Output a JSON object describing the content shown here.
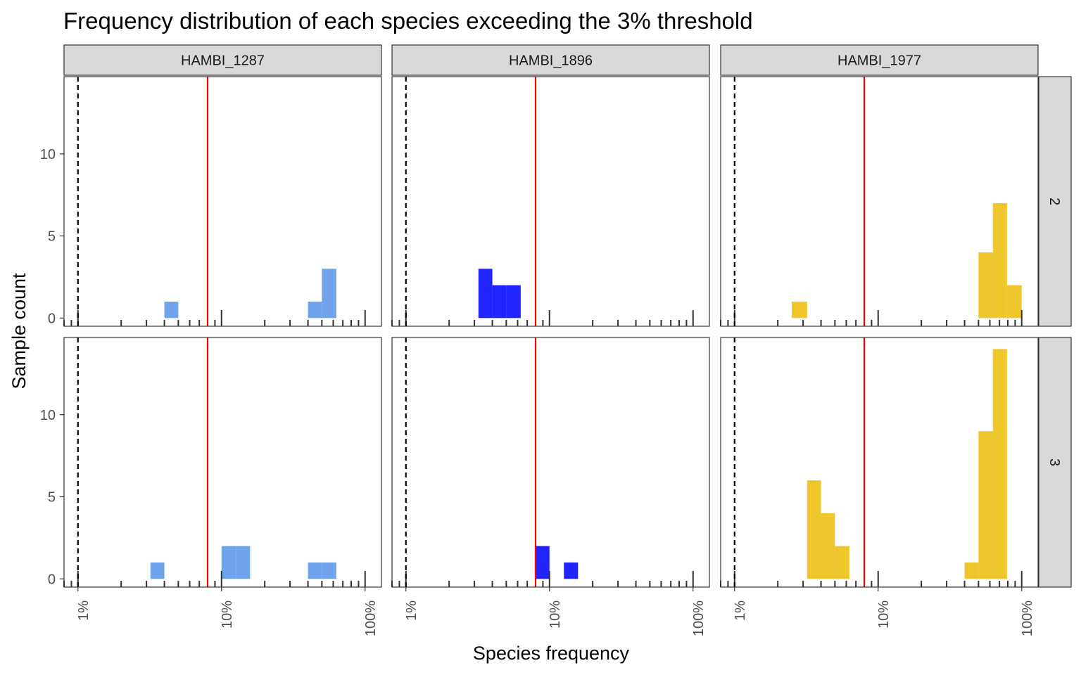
{
  "chart_data": {
    "type": "bar",
    "title": "Frequency distribution of each species exceeding the 3% threshold",
    "xlabel": "Species frequency",
    "ylabel": "Sample count",
    "x_scale": "log10",
    "xlim": [
      0.008,
      1.3
    ],
    "ylim": [
      -0.5,
      14.7
    ],
    "x_ticks": [
      {
        "value": 0.01,
        "label": "1%"
      },
      {
        "value": 0.1,
        "label": "10%"
      },
      {
        "value": 1.0,
        "label": "100%"
      }
    ],
    "y_ticks": [
      {
        "value": 0,
        "label": "0"
      },
      {
        "value": 5,
        "label": "5"
      },
      {
        "value": 10,
        "label": "10"
      }
    ],
    "reference_lines": [
      {
        "x": 0.01,
        "style": "dashed",
        "color": "#000000"
      },
      {
        "x": 0.08,
        "style": "solid",
        "color": "#ff0000"
      }
    ],
    "grid": false,
    "column_facets": [
      "HAMBI_1287",
      "HAMBI_1896",
      "HAMBI_1977"
    ],
    "row_facets": [
      "2",
      "3"
    ],
    "colors": {
      "HAMBI_1287": "#6fa3ee",
      "HAMBI_1896": "#2024ff",
      "HAMBI_1977": "#efc62c"
    },
    "panels": [
      {
        "species": "HAMBI_1287",
        "row": "2",
        "bins": [
          {
            "x0": 0.04,
            "x1": 0.05,
            "count": 1
          },
          {
            "x0": 0.4,
            "x1": 0.5,
            "count": 1
          },
          {
            "x0": 0.5,
            "x1": 0.63,
            "count": 3
          }
        ]
      },
      {
        "species": "HAMBI_1896",
        "row": "2",
        "bins": [
          {
            "x0": 0.032,
            "x1": 0.04,
            "count": 3
          },
          {
            "x0": 0.04,
            "x1": 0.05,
            "count": 2
          },
          {
            "x0": 0.05,
            "x1": 0.063,
            "count": 2
          }
        ]
      },
      {
        "species": "HAMBI_1977",
        "row": "2",
        "bins": [
          {
            "x0": 0.025,
            "x1": 0.032,
            "count": 1
          },
          {
            "x0": 0.5,
            "x1": 0.63,
            "count": 4
          },
          {
            "x0": 0.63,
            "x1": 0.79,
            "count": 7
          },
          {
            "x0": 0.79,
            "x1": 1.0,
            "count": 2
          }
        ]
      },
      {
        "species": "HAMBI_1287",
        "row": "3",
        "bins": [
          {
            "x0": 0.032,
            "x1": 0.04,
            "count": 1
          },
          {
            "x0": 0.1,
            "x1": 0.126,
            "count": 2
          },
          {
            "x0": 0.126,
            "x1": 0.158,
            "count": 2
          },
          {
            "x0": 0.4,
            "x1": 0.5,
            "count": 1
          },
          {
            "x0": 0.5,
            "x1": 0.63,
            "count": 1
          }
        ]
      },
      {
        "species": "HAMBI_1896",
        "row": "3",
        "bins": [
          {
            "x0": 0.079,
            "x1": 0.1,
            "count": 2
          },
          {
            "x0": 0.126,
            "x1": 0.158,
            "count": 1
          }
        ]
      },
      {
        "species": "HAMBI_1977",
        "row": "3",
        "bins": [
          {
            "x0": 0.032,
            "x1": 0.04,
            "count": 6
          },
          {
            "x0": 0.04,
            "x1": 0.05,
            "count": 4
          },
          {
            "x0": 0.05,
            "x1": 0.063,
            "count": 2
          },
          {
            "x0": 0.4,
            "x1": 0.5,
            "count": 1
          },
          {
            "x0": 0.5,
            "x1": 0.63,
            "count": 9
          },
          {
            "x0": 0.63,
            "x1": 0.79,
            "count": 14
          }
        ]
      }
    ]
  }
}
